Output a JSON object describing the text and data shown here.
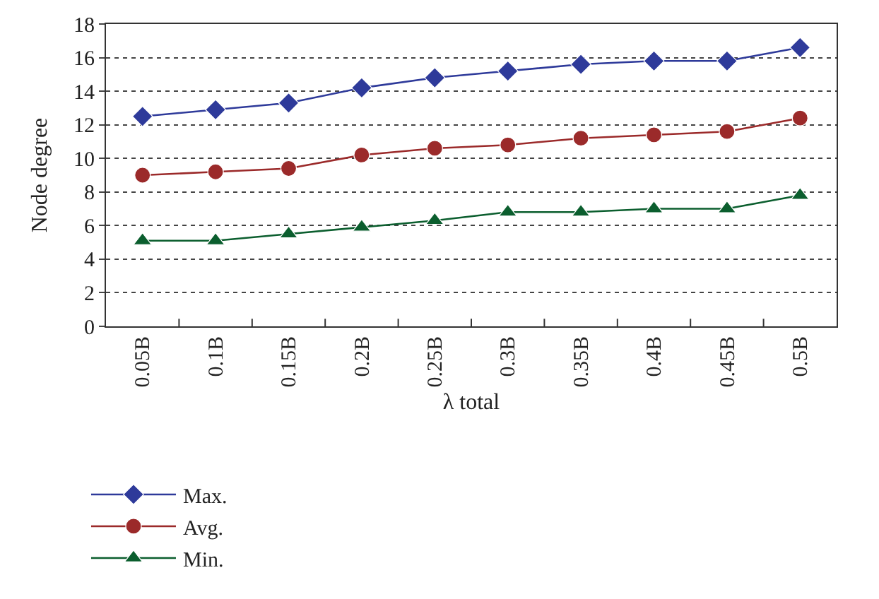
{
  "chart_data": {
    "type": "line",
    "xlabel": "λ total",
    "ylabel": "Node degree",
    "categories": [
      "0.05B",
      "0.1B",
      "0.15B",
      "0.2B",
      "0.25B",
      "0.3B",
      "0.35B",
      "0.4B",
      "0.45B",
      "0.5B"
    ],
    "series": [
      {
        "name": "Max.",
        "color": "#2e3a9a",
        "marker": "diamond",
        "values": [
          12.5,
          12.9,
          13.3,
          14.2,
          14.8,
          15.2,
          15.6,
          15.8,
          15.8,
          16.6
        ]
      },
      {
        "name": "Avg.",
        "color": "#9b2a2a",
        "marker": "circle",
        "values": [
          9.0,
          9.2,
          9.4,
          10.2,
          10.6,
          10.8,
          11.2,
          11.4,
          11.6,
          12.4
        ]
      },
      {
        "name": "Min.",
        "color": "#0b5e2e",
        "marker": "triangle",
        "values": [
          5.1,
          5.1,
          5.5,
          5.9,
          6.3,
          6.8,
          6.8,
          7.0,
          7.0,
          7.8
        ]
      }
    ],
    "ylim": [
      0,
      18
    ],
    "yticks": [
      0,
      2,
      4,
      6,
      8,
      10,
      12,
      14,
      16,
      18
    ],
    "grid": "y",
    "legend": "bottom left",
    "line_style": "solid"
  }
}
